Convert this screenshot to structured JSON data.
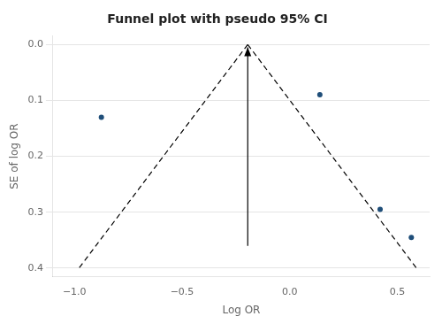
{
  "chart_data": {
    "type": "scatter",
    "title": "Funnel plot with pseudo 95% CI",
    "xlabel": "Log OR",
    "ylabel": "SE of log OR",
    "xlim": [
      -1.1,
      0.65
    ],
    "ylim": [
      0.415,
      -0.015
    ],
    "xticks": [
      {
        "value": -1,
        "label": "−1.0"
      },
      {
        "value": -0.5,
        "label": "−0.5"
      },
      {
        "value": 0,
        "label": "0.0"
      },
      0.5
    ],
    "yticks": [
      {
        "value": 0,
        "label": "0.0"
      },
      0.1,
      0.2,
      0.3,
      0.4
    ],
    "grid": "y",
    "series": [
      {
        "type": "line",
        "color": "#000000",
        "line_style": "dashed",
        "x": [
          -0.195,
          -0.979
        ],
        "values": [
          0.0,
          0.4
        ]
      },
      {
        "type": "line",
        "color": "#000000",
        "line_style": "dashed",
        "x": [
          -0.195,
          0.589
        ],
        "values": [
          0.0,
          0.4
        ]
      },
      {
        "type": "line",
        "color": "#000000",
        "marker": "arrow",
        "x": [
          -0.195,
          -0.195
        ],
        "values": [
          0.36,
          0.005
        ]
      },
      {
        "type": "scatter",
        "color": "#1f4e79",
        "x": [
          -0.875,
          0.14,
          0.42,
          0.565
        ],
        "values": [
          0.13,
          0.09,
          0.295,
          0.345
        ]
      }
    ]
  }
}
